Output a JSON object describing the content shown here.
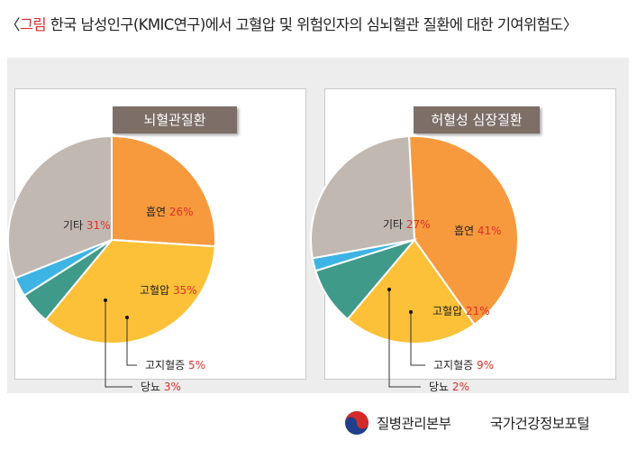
{
  "header": {
    "open_bracket": "〈",
    "figure_word": "그림",
    "title_text": " 한국 남성인구(KMIC연구)에서 고혈압 및 위험인자의 심뇌혈관 질환에 대한 기여위험도",
    "close_bracket": "〉"
  },
  "chart_data": [
    {
      "type": "pie",
      "title": "뇌혈관질환",
      "slices": [
        {
          "label": "흡연",
          "value": 26,
          "color": "#f79a3d"
        },
        {
          "label": "고혈압",
          "value": 35,
          "color": "#fcc138"
        },
        {
          "label": "고지혈증",
          "value": 5,
          "color": "#3f9a8a"
        },
        {
          "label": "당뇨",
          "value": 3,
          "color": "#3db4e4"
        },
        {
          "label": "기타",
          "value": 31,
          "color": "#c2b8b2"
        }
      ]
    },
    {
      "type": "pie",
      "title": "허혈성 심장질환",
      "slices": [
        {
          "label": "흡연",
          "value": 41,
          "color": "#f79a3d"
        },
        {
          "label": "고혈압",
          "value": 21,
          "color": "#fcc138"
        },
        {
          "label": "고지혈증",
          "value": 9,
          "color": "#3f9a8a"
        },
        {
          "label": "당뇨",
          "value": 2,
          "color": "#3db4e4"
        },
        {
          "label": "기타",
          "value": 27,
          "color": "#c2b8b2"
        }
      ]
    }
  ],
  "percent_color": "#e0302a",
  "footer": {
    "org_name": "질병관리본부",
    "portal_name": "국가건강정보포털"
  }
}
